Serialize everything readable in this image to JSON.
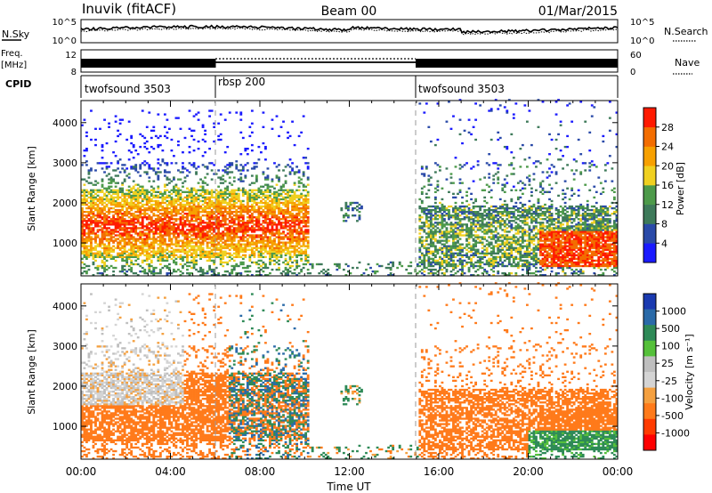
{
  "header": {
    "station": "Inuvik (fitACF)",
    "beam": "Beam 00",
    "date": "01/Mar/2015"
  },
  "strips": {
    "nsky_label": "N.Sky",
    "nsky_ticks": [
      "10^5",
      "10^0"
    ],
    "nsearch_label": "N.Search",
    "nsearch_ticks": [
      "10^5",
      "10^0"
    ],
    "freq_label_line1": "Freq.",
    "freq_label_line2": "[MHz]",
    "freq_ticks": [
      "12",
      "8"
    ],
    "nave_label": "Nave",
    "nave_ticks": [
      "60",
      "0"
    ],
    "cpid_label": "CPID",
    "cpid_segments": [
      {
        "label": "twofsound 3503",
        "start_h": 0,
        "end_h": 6
      },
      {
        "label": "rbsp 200",
        "start_h": 6,
        "end_h": 15
      },
      {
        "label": "twofsound 3503",
        "start_h": 15,
        "end_h": 24
      }
    ]
  },
  "colors": {
    "power": [
      "#1a1aff",
      "#2a4aa8",
      "#3e7a5a",
      "#4d9a4a",
      "#f0d020",
      "#f7a000",
      "#f36d00",
      "#ff1a00"
    ],
    "velocity": [
      "#ff0000",
      "#ff3b00",
      "#ff7a1a",
      "#f4a040",
      "#d4d4d4",
      "#bfbfbf",
      "#55c03a",
      "#2e8a57",
      "#2a6aa8",
      "#1a3ab0"
    ]
  },
  "chart_data": [
    {
      "type": "heatmap",
      "panel": "power",
      "ylabel": "Slant Range [km]",
      "xlim": [
        0,
        24
      ],
      "ylim": [
        180,
        4550
      ],
      "yticks": [
        1000,
        2000,
        3000,
        4000
      ],
      "colorbar_label": "Power [dB]",
      "colorbar_ticks": [
        "28",
        "24",
        "20",
        "16",
        "12",
        "8",
        "4"
      ],
      "colorbar_range": [
        0,
        32
      ]
    },
    {
      "type": "heatmap",
      "panel": "velocity",
      "ylabel": "Slant Range [km]",
      "xlabel": "Time UT",
      "xlim": [
        0,
        24
      ],
      "ylim": [
        180,
        4550
      ],
      "xticks": [
        "00:00",
        "04:00",
        "08:00",
        "12:00",
        "16:00",
        "20:00",
        "00:00"
      ],
      "yticks": [
        1000,
        2000,
        3000,
        4000
      ],
      "colorbar_label": "Velocity [m s⁻¹]",
      "colorbar_ticks": [
        "1000",
        "500",
        "100",
        "25",
        "-25",
        "-100",
        "-500",
        "-1000"
      ]
    }
  ]
}
